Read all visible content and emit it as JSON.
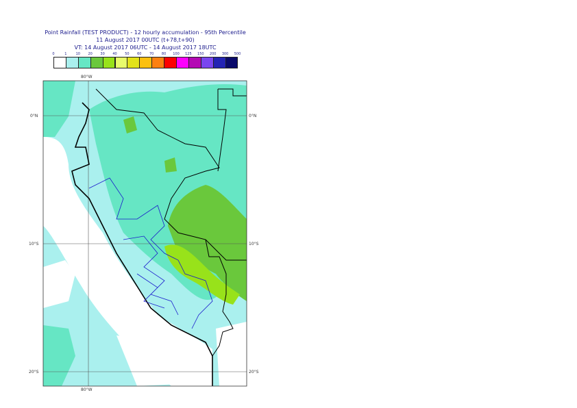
{
  "title": {
    "line1": "Point Rainfall (TEST PRODUCT) - 12 hourly accumulation - 95th Percentile",
    "line2": "11 August 2017 00UTC (t+78,t+90)",
    "line3": "VT: 14 August 2017 06UTC - 14 August 2017 18UTC"
  },
  "legend": {
    "labels": [
      "0",
      "1",
      "10",
      "20",
      "30",
      "40",
      "50",
      "60",
      "70",
      "80",
      "100",
      "125",
      "150",
      "200",
      "300",
      "500"
    ],
    "colors": [
      "#ffffff",
      "#aaf0ee",
      "#66e6c4",
      "#6ac83c",
      "#98e21a",
      "#e8fc6c",
      "#e2e21a",
      "#fcc010",
      "#fc8010",
      "#fc0000",
      "#fc00fc",
      "#b40ab4",
      "#7a46f0",
      "#2424b4",
      "#0a0a6a"
    ]
  },
  "axes": {
    "lon_top": "80°W",
    "lon_bottom": "80°W",
    "lat_left": [
      "0°N",
      "10°S",
      "20°S"
    ],
    "lat_right": [
      "0°N",
      "10°S",
      "20°S"
    ]
  }
}
